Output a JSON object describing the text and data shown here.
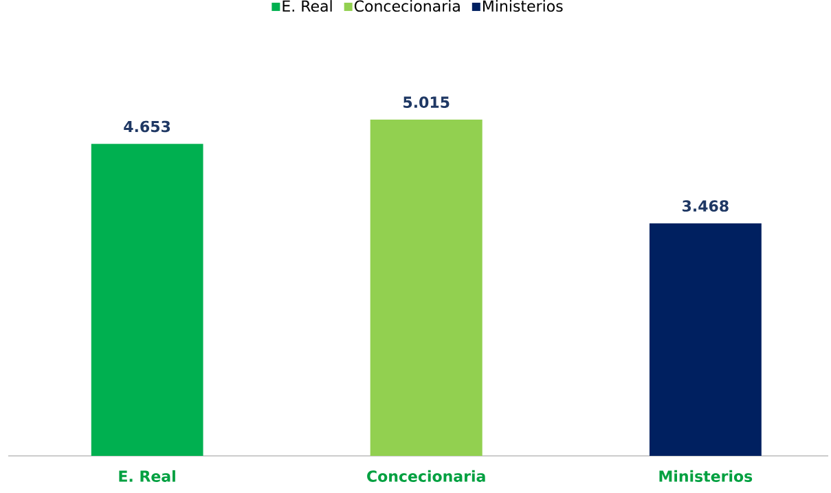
{
  "chart_data": {
    "type": "bar",
    "categories": [
      "E. Real",
      "Concecionaria",
      "Ministerios"
    ],
    "series": [
      {
        "name": "E. Real",
        "color": "#00b050",
        "values": [
          4653,
          null,
          null
        ],
        "value_labels": [
          "4.653",
          null,
          null
        ]
      },
      {
        "name": "Concecionaria",
        "color": "#92d050",
        "values": [
          null,
          5015,
          null
        ],
        "value_labels": [
          null,
          "5.015",
          null
        ]
      },
      {
        "name": "Ministerios",
        "color": "#002060",
        "values": [
          null,
          null,
          3468
        ],
        "value_labels": [
          null,
          null,
          "3.468"
        ]
      }
    ],
    "legend": "top",
    "grid": false,
    "tick_labels": "x"
  }
}
